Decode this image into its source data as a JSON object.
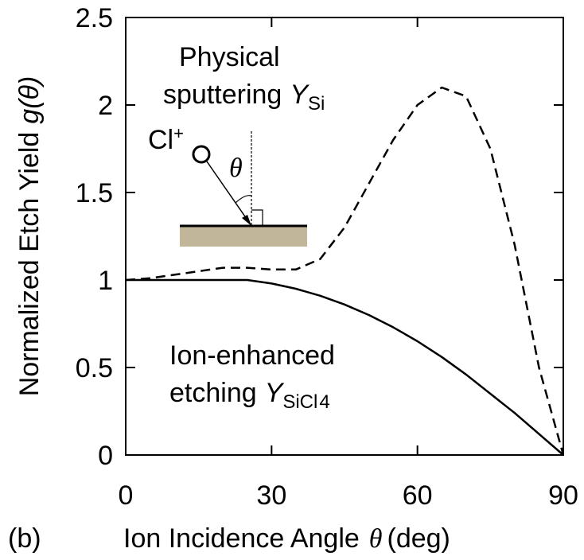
{
  "chart_data": {
    "type": "line",
    "x_label": {
      "text": "Ion Incidence Angle",
      "symbol": "θ",
      "unit": "(deg)"
    },
    "y_label": {
      "text": "Normalized Etch Yield",
      "symbol": "g(θ)"
    },
    "panel_label": "(b)",
    "annotations": {
      "sputtering": {
        "line1": "Physical",
        "line2": "sputtering",
        "symbol": "Y",
        "subscript": "Si"
      },
      "ion_enhanced": {
        "line1": "Ion-enhanced",
        "line2": "etching",
        "symbol": "Y",
        "subscript": "SiCl",
        "subscript2": "4"
      },
      "ion": {
        "text": "Cl",
        "superscript": "+"
      },
      "angle": "θ"
    },
    "x": [
      0,
      5,
      10,
      15,
      20,
      25,
      30,
      35,
      40,
      45,
      50,
      55,
      60,
      65,
      70,
      75,
      80,
      85,
      90
    ],
    "series": [
      {
        "color": "#000000",
        "dash": true,
        "values": [
          1,
          1.01,
          1.03,
          1.05,
          1.07,
          1.07,
          1.06,
          1.06,
          1.12,
          1.3,
          1.55,
          1.8,
          2.0,
          2.1,
          2.05,
          1.75,
          1.2,
          0.5,
          0
        ]
      },
      {
        "color": "#000000",
        "dash": false,
        "values": [
          1,
          1,
          1,
          1,
          1,
          1,
          0.98,
          0.95,
          0.91,
          0.86,
          0.8,
          0.73,
          0.65,
          0.56,
          0.46,
          0.35,
          0.24,
          0.12,
          0
        ]
      }
    ],
    "xlim": [
      0,
      90
    ],
    "xticks": [
      0,
      30,
      60,
      90
    ],
    "ylim": [
      0,
      2.5
    ],
    "yticks": [
      0,
      0.5,
      1,
      1.5,
      2,
      2.5
    ]
  }
}
